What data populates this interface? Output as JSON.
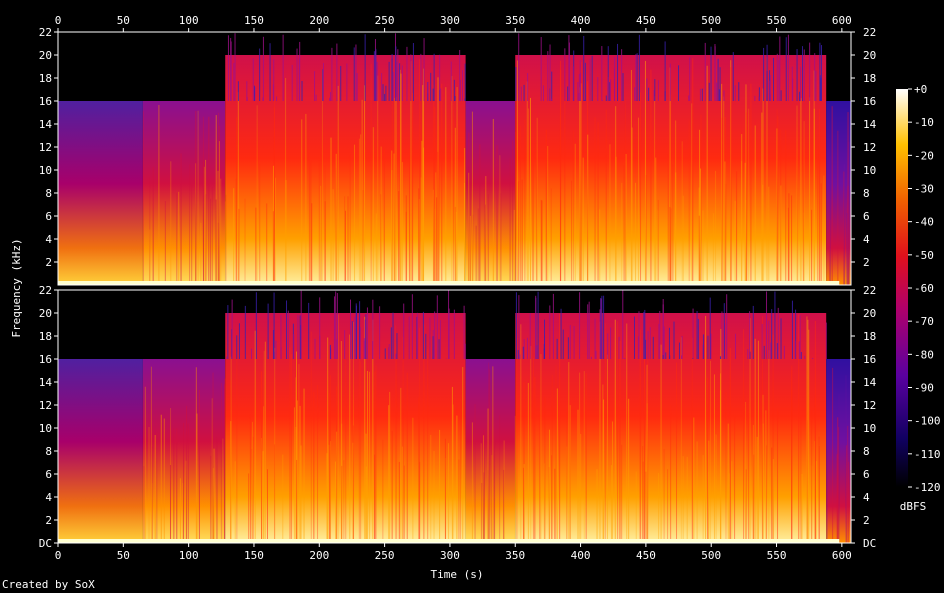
{
  "credit": "Created by SoX",
  "chart_data": {
    "type": "heatmap",
    "title": "",
    "xlabel": "Time (s)",
    "ylabel": "Frequency (kHz)",
    "colorbar_label": "dBFS",
    "xlim": [
      0,
      607
    ],
    "x_ticks": [
      "0",
      "50",
      "100",
      "150",
      "200",
      "250",
      "300",
      "350",
      "400",
      "450",
      "500",
      "550",
      "600"
    ],
    "ylim": [
      0,
      22
    ],
    "y_ticks": [
      "DC",
      "2",
      "4",
      "6",
      "8",
      "10",
      "12",
      "14",
      "16",
      "18",
      "20",
      "22"
    ],
    "colorbar_range": [
      -120,
      0
    ],
    "colorbar_ticks": [
      "+0",
      "-10",
      "-20",
      "-30",
      "-40",
      "-50",
      "-60",
      "-70",
      "-80",
      "-90",
      "-100",
      "-110",
      "-120"
    ],
    "channels": [
      {
        "name": "channel-1",
        "segments": [
          {
            "t": [
              0,
              65
            ],
            "max_khz": 16,
            "level": "quiet"
          },
          {
            "t": [
              65,
              128
            ],
            "max_khz": 16,
            "level": "moderate"
          },
          {
            "t": [
              128,
              312
            ],
            "max_khz": 20,
            "level": "loud"
          },
          {
            "t": [
              312,
              350
            ],
            "max_khz": 16,
            "level": "moderate"
          },
          {
            "t": [
              350,
              588
            ],
            "max_khz": 20,
            "level": "loud"
          },
          {
            "t": [
              588,
              607
            ],
            "max_khz": 16,
            "level": "fade"
          }
        ]
      },
      {
        "name": "channel-2",
        "segments": [
          {
            "t": [
              0,
              65
            ],
            "max_khz": 16,
            "level": "quiet"
          },
          {
            "t": [
              65,
              128
            ],
            "max_khz": 16,
            "level": "moderate"
          },
          {
            "t": [
              128,
              312
            ],
            "max_khz": 20,
            "level": "loud"
          },
          {
            "t": [
              312,
              350
            ],
            "max_khz": 16,
            "level": "moderate"
          },
          {
            "t": [
              350,
              588
            ],
            "max_khz": 20,
            "level": "loud"
          },
          {
            "t": [
              588,
              607
            ],
            "max_khz": 16,
            "level": "fade"
          }
        ]
      }
    ]
  }
}
